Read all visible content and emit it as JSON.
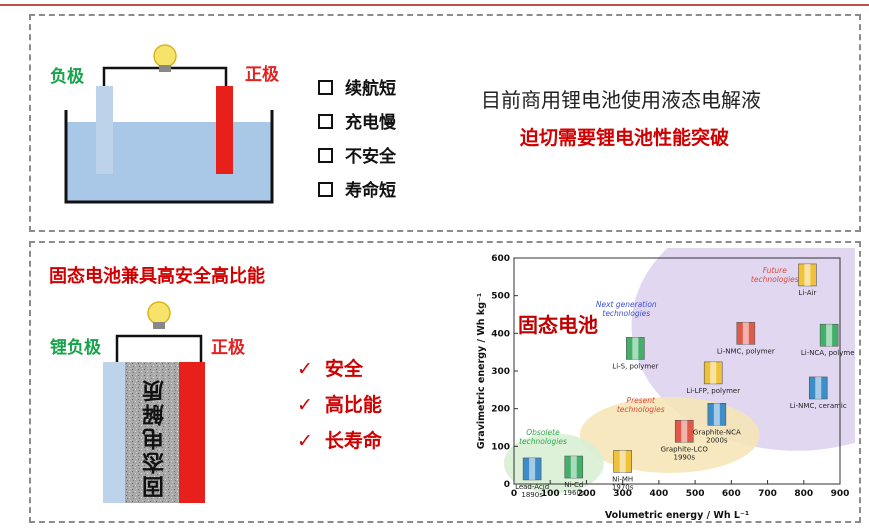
{
  "top_section": {
    "negative_label": "负极",
    "positive_label": "正极",
    "issues": [
      "续航短",
      "充电慢",
      "不安全",
      "寿命短"
    ],
    "statement": "目前商用锂电池使用液态电解液",
    "conclusion": "迫切需要锂电池性能突破"
  },
  "bottom_section": {
    "title": "固态电池兼具高安全高比能",
    "negative_label": "锂负极",
    "positive_label": "正极",
    "electrolyte_label": "固态电解质",
    "advantages": [
      "安全",
      "高比能",
      "长寿命"
    ]
  },
  "chart_data": {
    "type": "scatter",
    "xlabel": "Volumetric energy / Wh L⁻¹",
    "ylabel": "Gravimetric energy / Wh kg⁻¹",
    "xlim": [
      0,
      900
    ],
    "ylim": [
      0,
      600
    ],
    "x_ticks": [
      0,
      100,
      200,
      300,
      400,
      500,
      600,
      700,
      800,
      900
    ],
    "y_ticks": [
      0,
      100,
      200,
      300,
      400,
      500,
      600
    ],
    "overlay_title": "固态电池",
    "groups": [
      {
        "name": "Obsolete technologies",
        "color": "#2fa84f"
      },
      {
        "name": "Present technologies",
        "color": "#d94a3a"
      },
      {
        "name": "Next generation technologies",
        "color": "#3a4fd9"
      },
      {
        "name": "Future technologies",
        "color": "#d94a3a"
      }
    ],
    "points": [
      {
        "label": "Lead-Acid",
        "sublabel": "1890s",
        "x": 50,
        "y": 40
      },
      {
        "label": "Ni-Cd",
        "sublabel": "1960s",
        "x": 165,
        "y": 45
      },
      {
        "label": "Ni-MH",
        "sublabel": "1970s",
        "x": 300,
        "y": 60
      },
      {
        "label": "Graphite-LCO",
        "sublabel": "1990s",
        "x": 470,
        "y": 140
      },
      {
        "label": "Graphite-NCA",
        "sublabel": "2000s",
        "x": 560,
        "y": 185
      },
      {
        "label": "Li-S, polymer",
        "x": 335,
        "y": 360
      },
      {
        "label": "Li-LFP, polymer",
        "x": 550,
        "y": 295
      },
      {
        "label": "Li-NMC, polymer",
        "x": 640,
        "y": 400
      },
      {
        "label": "Li-NMC, ceramic",
        "x": 840,
        "y": 255
      },
      {
        "label": "Li-NCA, polymer",
        "x": 870,
        "y": 395
      },
      {
        "label": "Li-Air",
        "x": 810,
        "y": 555
      }
    ]
  }
}
